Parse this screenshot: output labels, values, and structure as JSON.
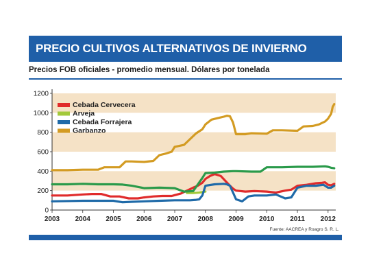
{
  "header": {
    "title": "PRECIO CULTIVOS ALTERNATIVOS DE INVIERNO"
  },
  "subtitle": "Precios FOB oficiales - promedio mensual. Dólares por tonelada",
  "source": "Fuente: AACREA y Roagro S. R. L.",
  "colors": {
    "brand": "#1f5fa8",
    "band": "#f5e2c6"
  },
  "chart_data": {
    "type": "line",
    "ylim": [
      0,
      1200
    ],
    "xlim": [
      2003,
      2012.25
    ],
    "yticks": [
      0,
      200,
      400,
      600,
      800,
      1000,
      1200
    ],
    "xticks": [
      "2003",
      "2004",
      "2005",
      "2006",
      "2007",
      "2008",
      "2009",
      "2010",
      "2011",
      "2012"
    ],
    "legend_position": "top-left",
    "series": [
      {
        "name": "Cebada Cervecera",
        "color": "#e02b2b",
        "x": [
          2003.0,
          2003.5,
          2004.0,
          2004.3,
          2004.6,
          2004.9,
          2005.2,
          2005.5,
          2005.8,
          2006.0,
          2006.3,
          2006.6,
          2006.9,
          2007.2,
          2007.4,
          2007.6,
          2007.75,
          2007.9,
          2008.0,
          2008.15,
          2008.3,
          2008.5,
          2008.65,
          2008.8,
          2008.9,
          2009.0,
          2009.3,
          2009.6,
          2010.0,
          2010.3,
          2010.6,
          2010.8,
          2011.0,
          2011.3,
          2011.6,
          2011.8,
          2011.9,
          2012.0,
          2012.1,
          2012.2
        ],
        "y": [
          150,
          150,
          160,
          165,
          165,
          140,
          140,
          120,
          120,
          130,
          140,
          145,
          145,
          170,
          200,
          230,
          250,
          280,
          320,
          350,
          370,
          350,
          300,
          250,
          220,
          200,
          190,
          195,
          190,
          180,
          200,
          210,
          250,
          260,
          275,
          280,
          285,
          260,
          255,
          270
        ]
      },
      {
        "name": "Arveja",
        "color": "#a3c93a",
        "x": [
          2007.4,
          2007.6,
          2007.8,
          2008.0
        ],
        "y": [
          175,
          175,
          180,
          190
        ]
      },
      {
        "name": "Cebada Forrajera",
        "color": "#1f6aa8",
        "x": [
          2003.0,
          2004.0,
          2005.0,
          2005.3,
          2005.6,
          2006.0,
          2006.5,
          2007.0,
          2007.5,
          2007.7,
          2007.8,
          2007.9,
          2008.0,
          2008.3,
          2008.6,
          2008.7,
          2008.8,
          2008.9,
          2009.0,
          2009.2,
          2009.4,
          2009.6,
          2010.0,
          2010.3,
          2010.6,
          2010.8,
          2011.0,
          2011.3,
          2011.6,
          2011.85,
          2012.0,
          2012.1,
          2012.2
        ],
        "y": [
          90,
          95,
          95,
          80,
          85,
          90,
          95,
          100,
          100,
          105,
          110,
          150,
          250,
          265,
          270,
          265,
          250,
          180,
          110,
          90,
          140,
          150,
          150,
          160,
          120,
          130,
          230,
          250,
          250,
          260,
          230,
          230,
          250
        ]
      },
      {
        "name": "Garbanzo",
        "color": "#d39b22",
        "x": [
          2003.0,
          2003.5,
          2004.0,
          2004.5,
          2004.7,
          2005.0,
          2005.2,
          2005.4,
          2005.6,
          2006.0,
          2006.3,
          2006.5,
          2006.7,
          2006.9,
          2007.0,
          2007.3,
          2007.5,
          2007.7,
          2007.9,
          2008.0,
          2008.2,
          2008.4,
          2008.6,
          2008.7,
          2008.8,
          2008.9,
          2009.0,
          2009.3,
          2009.5,
          2010.0,
          2010.2,
          2010.5,
          2011.0,
          2011.2,
          2011.5,
          2011.7,
          2011.9,
          2012.0,
          2012.1,
          2012.15,
          2012.2
        ],
        "y": [
          410,
          410,
          415,
          415,
          440,
          440,
          440,
          500,
          500,
          495,
          505,
          565,
          580,
          600,
          650,
          670,
          730,
          790,
          830,
          880,
          930,
          945,
          960,
          970,
          965,
          900,
          780,
          780,
          790,
          785,
          820,
          820,
          815,
          860,
          865,
          880,
          910,
          940,
          990,
          1060,
          1090
        ]
      },
      {
        "name": "",
        "color": "#2a9a4a",
        "x": [
          2003.0,
          2003.5,
          2004.0,
          2004.5,
          2005.0,
          2005.3,
          2005.6,
          2006.0,
          2006.5,
          2007.0,
          2007.3,
          2007.6,
          2007.9,
          2008.0,
          2008.3,
          2008.6,
          2008.9,
          2009.0,
          2009.5,
          2009.8,
          2010.0,
          2010.5,
          2011.0,
          2011.5,
          2011.9,
          2012.0,
          2012.1,
          2012.2
        ],
        "y": [
          265,
          265,
          270,
          265,
          265,
          262,
          250,
          225,
          230,
          225,
          190,
          195,
          330,
          380,
          385,
          395,
          400,
          400,
          395,
          395,
          440,
          440,
          445,
          445,
          450,
          445,
          435,
          430
        ]
      }
    ]
  }
}
